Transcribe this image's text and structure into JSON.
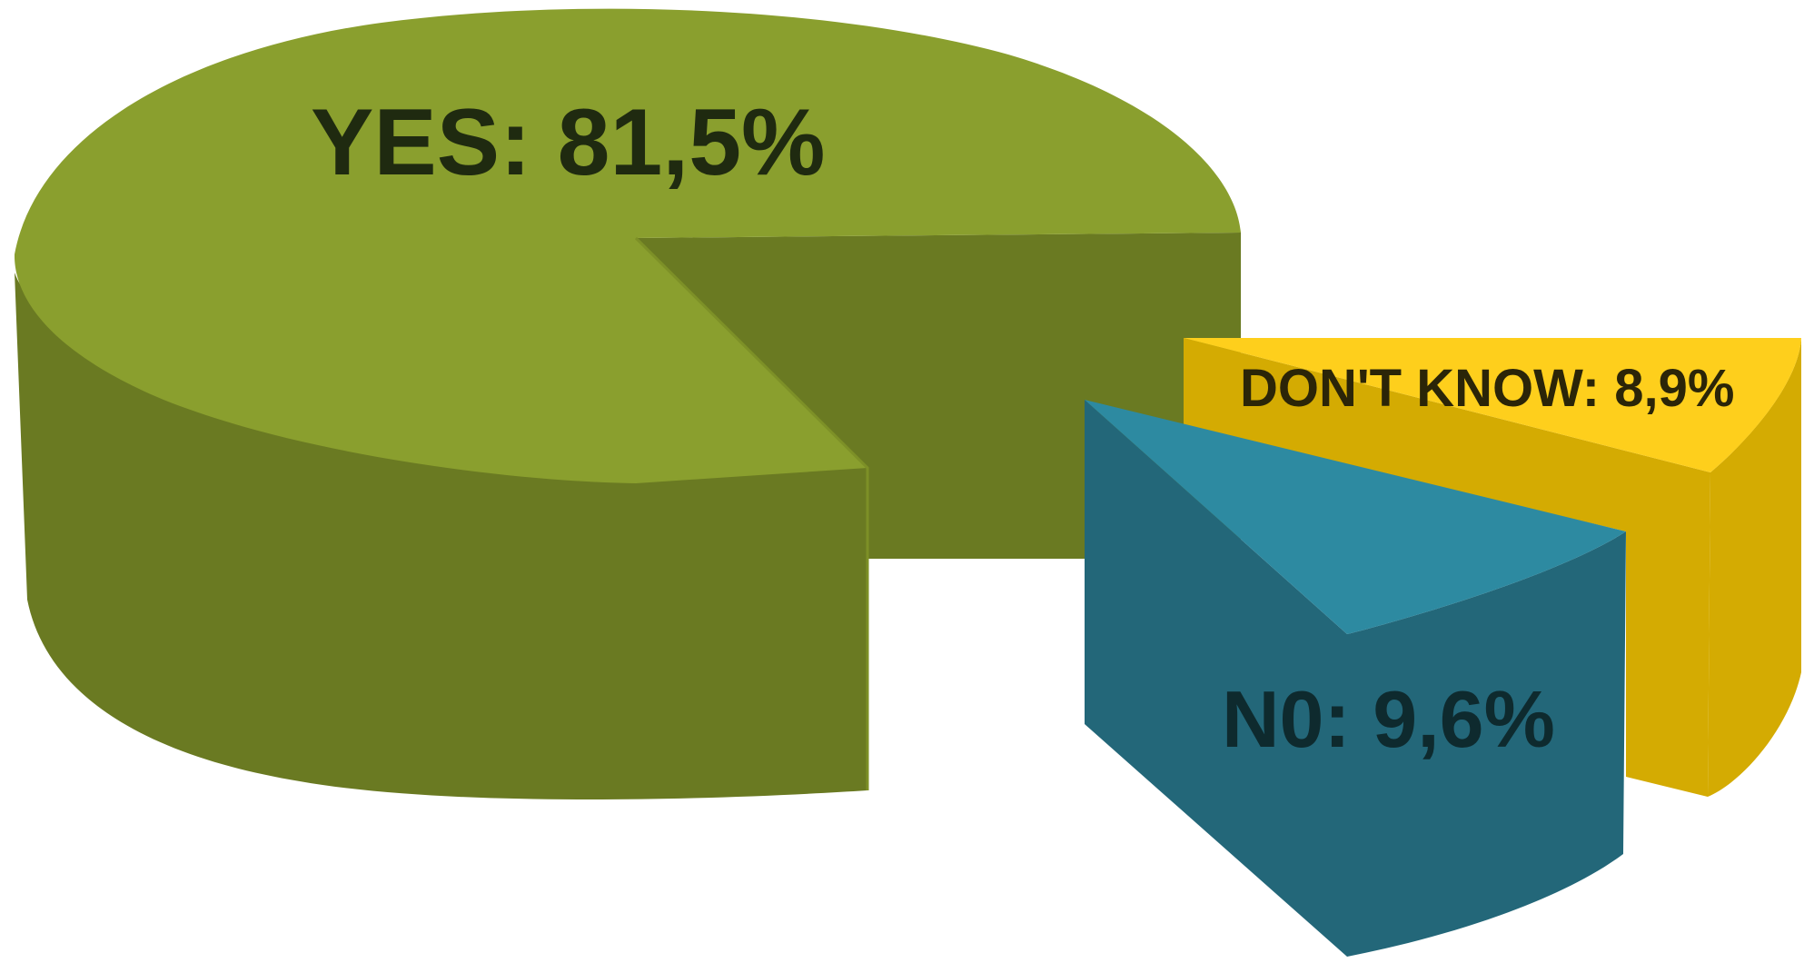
{
  "chart_data": {
    "type": "pie",
    "style": "3d-exploded",
    "title": "",
    "slices": [
      {
        "label": "YES",
        "value": 81.5,
        "display": "YES: 81,5%",
        "color": "#8a9f2e",
        "side_color": "#6a7a22"
      },
      {
        "label": "N0",
        "value": 9.6,
        "display": "N0: 9,6%",
        "color": "#2d8aa1",
        "side_color": "#236779"
      },
      {
        "label": "DON'T KNOW",
        "value": 8.9,
        "display": "DON'T KNOW: 8,9%",
        "color": "#fecf1c",
        "side_color": "#d4ab02"
      }
    ],
    "legend": "none",
    "label_color": "#1f2a10"
  }
}
